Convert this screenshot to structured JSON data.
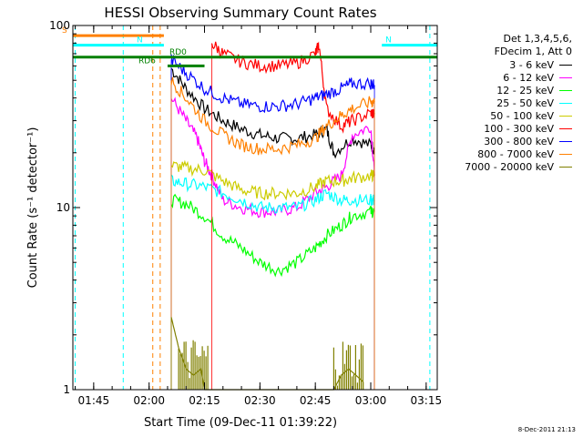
{
  "chart_data": {
    "type": "line",
    "title": "HESSI Observing Summary Count Rates",
    "xlabel": "Start Time (09-Dec-11 01:39:22)",
    "ylabel": "Count Rate (s⁻¹ detector⁻¹)",
    "y_scale": "log",
    "xlim": [
      "01:39:22",
      "03:18:00"
    ],
    "ylim": [
      1,
      100
    ],
    "x_ticks": [
      "01:45",
      "02:00",
      "02:15",
      "02:30",
      "02:45",
      "03:00",
      "03:15"
    ],
    "y_ticks": [
      "1",
      "10",
      "100"
    ],
    "grid": false,
    "legend_position": "right",
    "legend_header": [
      "Det 1,3,4,5,6,",
      "FDecim 1, Att 0"
    ],
    "series": [
      {
        "name": "3 - 6 keV",
        "color": "#000000",
        "x": [
          "02:06",
          "02:10",
          "02:15",
          "02:20",
          "02:25",
          "02:30",
          "02:35",
          "02:40",
          "02:45",
          "02:48",
          "02:50",
          "02:55",
          "03:00",
          "03:01"
        ],
        "values": [
          58,
          45,
          35,
          30,
          27,
          25,
          24,
          24,
          25,
          27,
          20,
          24,
          22,
          21
        ]
      },
      {
        "name": "6 - 12 keV",
        "color": "#ff00ff",
        "x": [
          "02:06",
          "02:10",
          "02:13",
          "02:15",
          "02:17",
          "02:20",
          "02:25",
          "02:30",
          "02:35",
          "02:40",
          "02:45",
          "02:48",
          "02:52",
          "02:55",
          "03:00",
          "03:01"
        ],
        "values": [
          40,
          30,
          24,
          18,
          15,
          11,
          10,
          9.5,
          9.5,
          10,
          12,
          13,
          15,
          25,
          28,
          15
        ]
      },
      {
        "name": "12 - 25 keV",
        "color": "#00ff00",
        "x": [
          "02:06",
          "02:10",
          "02:15",
          "02:20",
          "02:25",
          "02:30",
          "02:35",
          "02:40",
          "02:45",
          "02:48",
          "02:52",
          "02:55",
          "03:00",
          "03:01"
        ],
        "values": [
          11,
          10.5,
          9,
          7,
          6,
          5,
          4.5,
          5,
          6,
          7,
          8,
          9,
          9.5,
          9.5
        ]
      },
      {
        "name": "25 - 50 keV",
        "color": "#00ffff",
        "x": [
          "02:06",
          "02:10",
          "02:15",
          "02:20",
          "02:25",
          "02:30",
          "02:35",
          "02:40",
          "02:45",
          "02:48",
          "02:52",
          "02:55",
          "03:00",
          "03:01"
        ],
        "values": [
          14,
          13.5,
          13,
          12,
          11,
          10,
          10,
          10,
          11,
          12,
          11,
          11,
          11,
          11
        ]
      },
      {
        "name": "50 - 100 keV",
        "color": "#cccc00",
        "x": [
          "02:06",
          "02:10",
          "02:15",
          "02:20",
          "02:25",
          "02:30",
          "02:35",
          "02:40",
          "02:45",
          "02:48",
          "02:52",
          "02:55",
          "03:00",
          "03:01"
        ],
        "values": [
          17,
          16.5,
          16,
          14,
          12.5,
          12,
          12,
          12,
          13,
          14,
          14,
          14.5,
          15,
          15
        ]
      },
      {
        "name": "100 - 300 keV",
        "color": "#ff0000",
        "x": [
          "02:17",
          "02:20",
          "02:25",
          "02:30",
          "02:35",
          "02:40",
          "02:45",
          "02:46",
          "02:48",
          "02:52",
          "02:55",
          "03:00",
          "03:01"
        ],
        "values": [
          80,
          70,
          63,
          60,
          60,
          62,
          70,
          78,
          35,
          28,
          30,
          33,
          33
        ]
      },
      {
        "name": "300 - 800 keV",
        "color": "#0000ff",
        "x": [
          "02:06",
          "02:10",
          "02:15",
          "02:20",
          "02:25",
          "02:30",
          "02:35",
          "02:40",
          "02:45",
          "02:48",
          "02:52",
          "02:55",
          "03:00",
          "03:01"
        ],
        "values": [
          65,
          55,
          45,
          40,
          37,
          36,
          36,
          37,
          40,
          42,
          45,
          48,
          48,
          47
        ]
      },
      {
        "name": "800 - 7000 keV",
        "color": "#ff8000",
        "x": [
          "02:06",
          "02:10",
          "02:15",
          "02:20",
          "02:25",
          "02:30",
          "02:35",
          "02:40",
          "02:45",
          "02:48",
          "02:52",
          "02:55",
          "03:00",
          "03:01"
        ],
        "values": [
          50,
          40,
          30,
          25,
          22,
          21,
          21,
          22,
          24,
          28,
          32,
          35,
          38,
          38
        ]
      },
      {
        "name": "7000 - 20000 keV",
        "color": "#808000",
        "x": [
          "02:06",
          "02:08",
          "02:10",
          "02:12",
          "02:14",
          "02:15",
          "02:16",
          "02:20",
          "02:50",
          "02:52",
          "02:54",
          "02:56",
          "02:58"
        ],
        "values": [
          2.5,
          1.7,
          1.3,
          1.2,
          1.3,
          1.0,
          1.0,
          1.0,
          1.0,
          1.2,
          1.3,
          1.2,
          1.1
        ]
      }
    ],
    "flags": [
      {
        "label": "S",
        "color": "#ff8000",
        "y": 88,
        "x": [
          "01:39:22",
          "02:04"
        ]
      },
      {
        "label": "N",
        "color": "#00ffff",
        "y": 78,
        "x": [
          "01:39:22",
          "02:04"
        ]
      },
      {
        "label": "N",
        "color": "#00ffff",
        "y": 78,
        "x": [
          "03:03",
          "03:18:00"
        ]
      },
      {
        "label": "RD0",
        "color": "#008000",
        "y": 67,
        "x": [
          "01:39:22",
          "02:15"
        ]
      },
      {
        "label": "RD0",
        "color": "#008000",
        "y": 67,
        "x": [
          "02:15",
          "03:18:00"
        ]
      },
      {
        "label": "RD6",
        "color": "#008000",
        "y": 60,
        "x": [
          "02:05",
          "02:15"
        ]
      }
    ],
    "vertical_markers": [
      {
        "color": "#00ffff",
        "x": "01:40"
      },
      {
        "color": "#00ffff",
        "x": "01:53"
      },
      {
        "color": "#ff8000",
        "x": "02:01"
      },
      {
        "color": "#ff8000",
        "x": "02:03"
      },
      {
        "color": "#00ffff",
        "x": "03:16"
      }
    ]
  },
  "stamp": "8-Dec-2011 21:13"
}
